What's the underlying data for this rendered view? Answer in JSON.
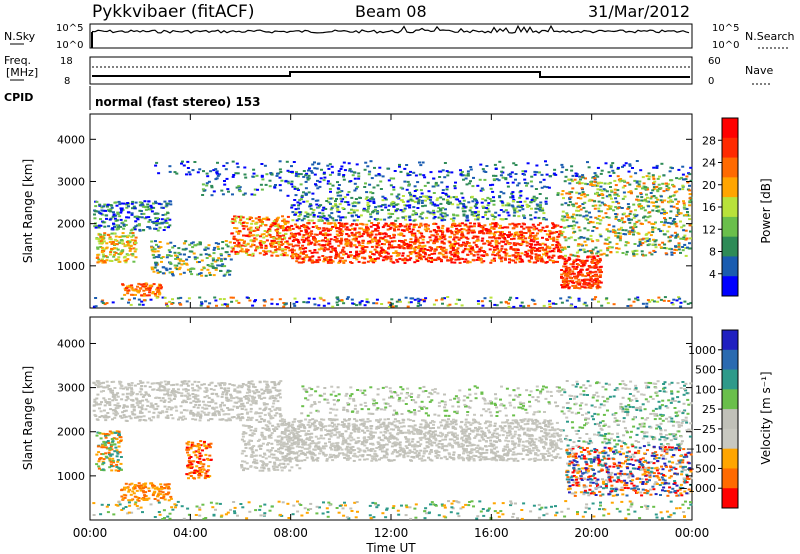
{
  "header": {
    "station": "Pykkvibaer (fitACF)",
    "beam": "Beam 08",
    "date": "31/Mar/2012"
  },
  "sky_panel": {
    "left_label": "N.Sky",
    "left_ticks": [
      "10^5",
      "10^0"
    ],
    "right_label": "N.Search",
    "right_ticks": [
      "10^5",
      "10^0"
    ]
  },
  "freq_panel": {
    "left_label_1": "Freq.",
    "left_label_2": "[MHz]",
    "left_ticks": [
      "18",
      "8"
    ],
    "right_label": "Nave",
    "right_ticks": [
      "60",
      "0"
    ]
  },
  "cpid": {
    "label": "CPID",
    "value": "normal (fast stereo) 153"
  },
  "colors": {
    "power_scale": [
      "#0000ff",
      "#1a5cb0",
      "#2e8b57",
      "#6abf4b",
      "#b8e23a",
      "#ffa500",
      "#ff6a00",
      "#ff2a00",
      "#ff0000"
    ],
    "velocity_scale": [
      "#2020c0",
      "#2a6ab0",
      "#2e9a8a",
      "#6abf4b",
      "#c0c0b8",
      "#c8c8c0",
      "#ffa500",
      "#ff6a00",
      "#ff0000"
    ]
  },
  "chart_data": [
    {
      "type": "heatmap",
      "title": "Power",
      "ylabel": "Slant Range [km]",
      "xlabel": "",
      "x_ticks": [
        "00:00",
        "04:00",
        "08:00",
        "12:00",
        "16:00",
        "20:00",
        "00:00"
      ],
      "y_ticks": [
        "1000",
        "2000",
        "3000",
        "4000"
      ],
      "ylim": [
        0,
        4600
      ],
      "colorbar_label": "Power [dB]",
      "colorbar_ticks": [
        "4",
        "8",
        "12",
        "16",
        "20",
        "24",
        "28"
      ]
    },
    {
      "type": "heatmap",
      "title": "Velocity",
      "ylabel": "Slant Range [km]",
      "xlabel": "Time UT",
      "x_ticks": [
        "00:00",
        "04:00",
        "08:00",
        "12:00",
        "16:00",
        "20:00",
        "00:00"
      ],
      "y_ticks": [
        "1000",
        "2000",
        "3000",
        "4000"
      ],
      "ylim": [
        0,
        4600
      ],
      "colorbar_label": "Velocity [m s⁻¹]",
      "colorbar_ticks": [
        "1000",
        "500",
        "100",
        "25",
        "−25",
        "−100",
        "−500",
        "−1000"
      ]
    }
  ]
}
